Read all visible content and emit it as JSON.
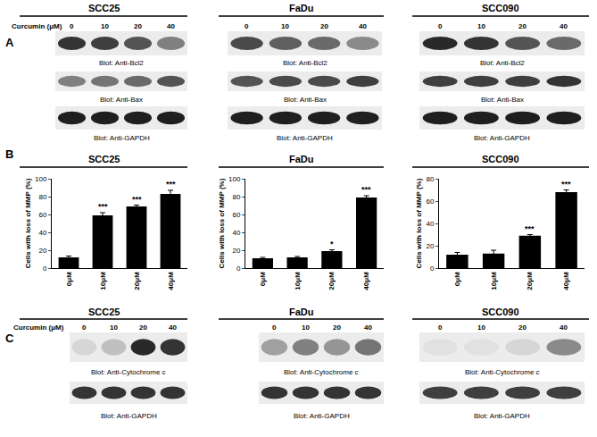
{
  "panel_a": {
    "label": "A",
    "treatment": "Curcumin (μM)",
    "groups": [
      {
        "title": "SCC25",
        "doses": [
          "0",
          "10",
          "20",
          "40"
        ],
        "blots": [
          "Blot: Anti-Bcl2",
          "Blot: Anti-Bax",
          "Blot: Anti-GAPDH"
        ]
      },
      {
        "title": "FaDu",
        "doses": [
          "0",
          "10",
          "20",
          "40"
        ],
        "blots": [
          "Blot: Anti-Bcl2",
          "Blot: Anti-Bax",
          "Blot: Anti-GAPDH"
        ]
      },
      {
        "title": "SCC090",
        "doses": [
          "0",
          "10",
          "20",
          "40"
        ],
        "blots": [
          "Blot: Anti-Bcl2",
          "Blot: Anti-Bax",
          "Blot: Anti-GAPDH"
        ]
      }
    ]
  },
  "panel_b": {
    "label": "B"
  },
  "chart_data": [
    {
      "type": "bar",
      "title": "SCC25",
      "categories": [
        "0μM",
        "10μM",
        "20μM",
        "40μM"
      ],
      "values": [
        12,
        59,
        69,
        83
      ],
      "errors": [
        1.5,
        3,
        1.5,
        4
      ],
      "significance": [
        null,
        "***",
        "***",
        "***"
      ],
      "color": "#000000",
      "y_label": "Cells with loss of MMP (%)",
      "ylim": [
        0,
        100
      ],
      "yticks": [
        0,
        20,
        40,
        60,
        80,
        100
      ],
      "grid": false
    },
    {
      "type": "bar",
      "title": "FaDu",
      "categories": [
        "0μM",
        "10μM",
        "20μM",
        "40μM"
      ],
      "values": [
        11,
        12,
        19,
        79
      ],
      "errors": [
        1,
        1,
        1.5,
        2
      ],
      "significance": [
        null,
        null,
        "*",
        "***"
      ],
      "color": "#000000",
      "y_label": "Cells with loss of MMP (%)",
      "ylim": [
        0,
        100
      ],
      "yticks": [
        0,
        20,
        40,
        60,
        80,
        100
      ],
      "grid": false
    },
    {
      "type": "bar",
      "title": "SCC090",
      "categories": [
        "0μM",
        "10μM",
        "20μM",
        "40μM"
      ],
      "values": [
        12,
        13,
        29,
        68
      ],
      "errors": [
        2,
        3,
        1,
        2
      ],
      "significance": [
        null,
        null,
        "***",
        "***"
      ],
      "color": "#000000",
      "y_label": "Cells with loss of MMP (%)",
      "ylim": [
        0,
        80
      ],
      "yticks": [
        0,
        20,
        40,
        60,
        80
      ],
      "grid": false
    }
  ],
  "panel_c": {
    "label": "C",
    "treatment": "Curcumin (μM)",
    "groups": [
      {
        "title": "SCC25",
        "doses": [
          "0",
          "10",
          "20",
          "40"
        ],
        "blots": [
          "Blot: Anti-Cytochrome c",
          "Blot: Anti-GAPDH"
        ]
      },
      {
        "title": "FaDu",
        "doses": [
          "0",
          "10",
          "20",
          "40"
        ],
        "blots": [
          "Blot: Anti-Cytochrome c",
          "Blot: Anti-GAPDH"
        ]
      },
      {
        "title": "SCC090",
        "doses": [
          "0",
          "10",
          "20",
          "40"
        ],
        "blots": [
          "Blot: Anti-Cytochrome c",
          "Blot: Anti-GAPDH"
        ]
      }
    ]
  }
}
